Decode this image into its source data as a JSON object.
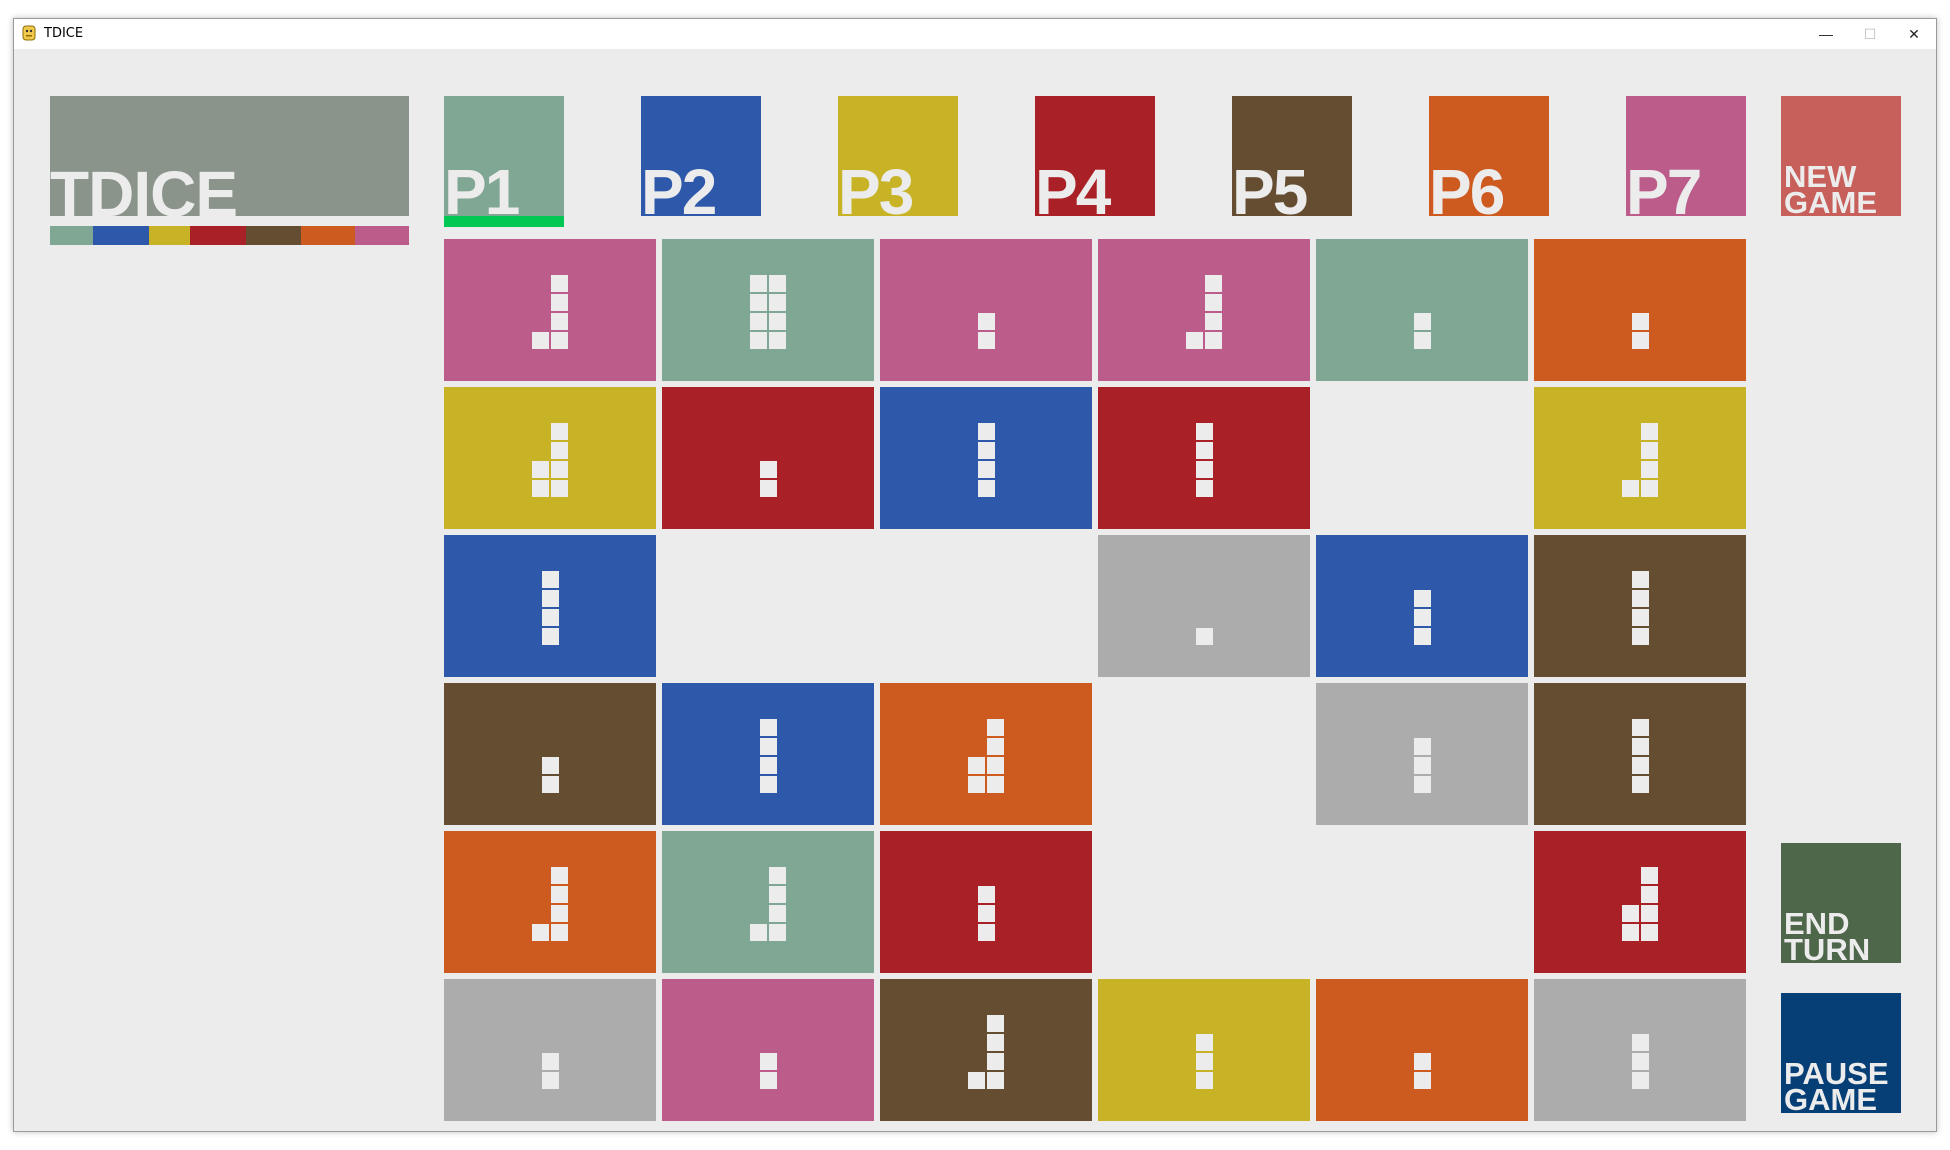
{
  "window": {
    "title": "TDICE",
    "controls": {
      "minimize": "—",
      "maximize": "☐",
      "close": "✕"
    }
  },
  "logo": {
    "text": "TDICE",
    "color": "#8a948a"
  },
  "player_colors": {
    "P1": "#80a794",
    "P2": "#2e59aa",
    "P3": "#c7b325",
    "P4": "#a92026",
    "P5": "#644d31",
    "P6": "#cd5b20",
    "P7": "#bb5c8b"
  },
  "neutral_color": "#acacac",
  "players": [
    {
      "id": "P1",
      "label": "P1",
      "active": true
    },
    {
      "id": "P2",
      "label": "P2",
      "active": false
    },
    {
      "id": "P3",
      "label": "P3",
      "active": false
    },
    {
      "id": "P4",
      "label": "P4",
      "active": false
    },
    {
      "id": "P5",
      "label": "P5",
      "active": false
    },
    {
      "id": "P6",
      "label": "P6",
      "active": false
    },
    {
      "id": "P7",
      "label": "P7",
      "active": false
    }
  ],
  "active_indicator_color": "#00c853",
  "territory_distribution": [
    {
      "owner": "P1",
      "fraction": 0.12
    },
    {
      "owner": "P2",
      "fraction": 0.155
    },
    {
      "owner": "P3",
      "fraction": 0.115
    },
    {
      "owner": "P4",
      "fraction": 0.155
    },
    {
      "owner": "P5",
      "fraction": 0.155
    },
    {
      "owner": "P6",
      "fraction": 0.15
    },
    {
      "owner": "P7",
      "fraction": 0.15
    }
  ],
  "buttons": {
    "new_game": {
      "label": "NEW\nGAME",
      "color": "#c75f5b"
    },
    "end_turn": {
      "label": "END\nTURN",
      "color": "#4e6649"
    },
    "pause_game": {
      "label": "PAUSE\nGAME",
      "color": "#063f75"
    }
  },
  "board": [
    [
      {
        "owner": "P7",
        "dice": 5
      },
      {
        "owner": "P1",
        "dice": 8
      },
      {
        "owner": "P7",
        "dice": 2
      },
      {
        "owner": "P7",
        "dice": 5
      },
      {
        "owner": "P1",
        "dice": 2
      },
      {
        "owner": "P6",
        "dice": 2
      }
    ],
    [
      {
        "owner": "P3",
        "dice": 6
      },
      {
        "owner": "P4",
        "dice": 2
      },
      {
        "owner": "P2",
        "dice": 4
      },
      {
        "owner": "P4",
        "dice": 4
      },
      null,
      {
        "owner": "P3",
        "dice": 5
      }
    ],
    [
      {
        "owner": "P2",
        "dice": 4
      },
      null,
      null,
      {
        "owner": "N",
        "dice": 1
      },
      {
        "owner": "P2",
        "dice": 3
      },
      {
        "owner": "P5",
        "dice": 4
      }
    ],
    [
      {
        "owner": "P5",
        "dice": 2
      },
      {
        "owner": "P2",
        "dice": 4
      },
      {
        "owner": "P6",
        "dice": 6
      },
      null,
      {
        "owner": "N",
        "dice": 3
      },
      {
        "owner": "P5",
        "dice": 4
      }
    ],
    [
      {
        "owner": "P6",
        "dice": 5
      },
      {
        "owner": "P1",
        "dice": 5
      },
      {
        "owner": "P4",
        "dice": 3
      },
      null,
      null,
      {
        "owner": "P4",
        "dice": 6
      }
    ],
    [
      {
        "owner": "N",
        "dice": 2
      },
      {
        "owner": "P7",
        "dice": 2
      },
      {
        "owner": "P5",
        "dice": 5
      },
      {
        "owner": "P3",
        "dice": 3
      },
      {
        "owner": "P6",
        "dice": 2
      },
      {
        "owner": "N",
        "dice": 3
      }
    ]
  ]
}
